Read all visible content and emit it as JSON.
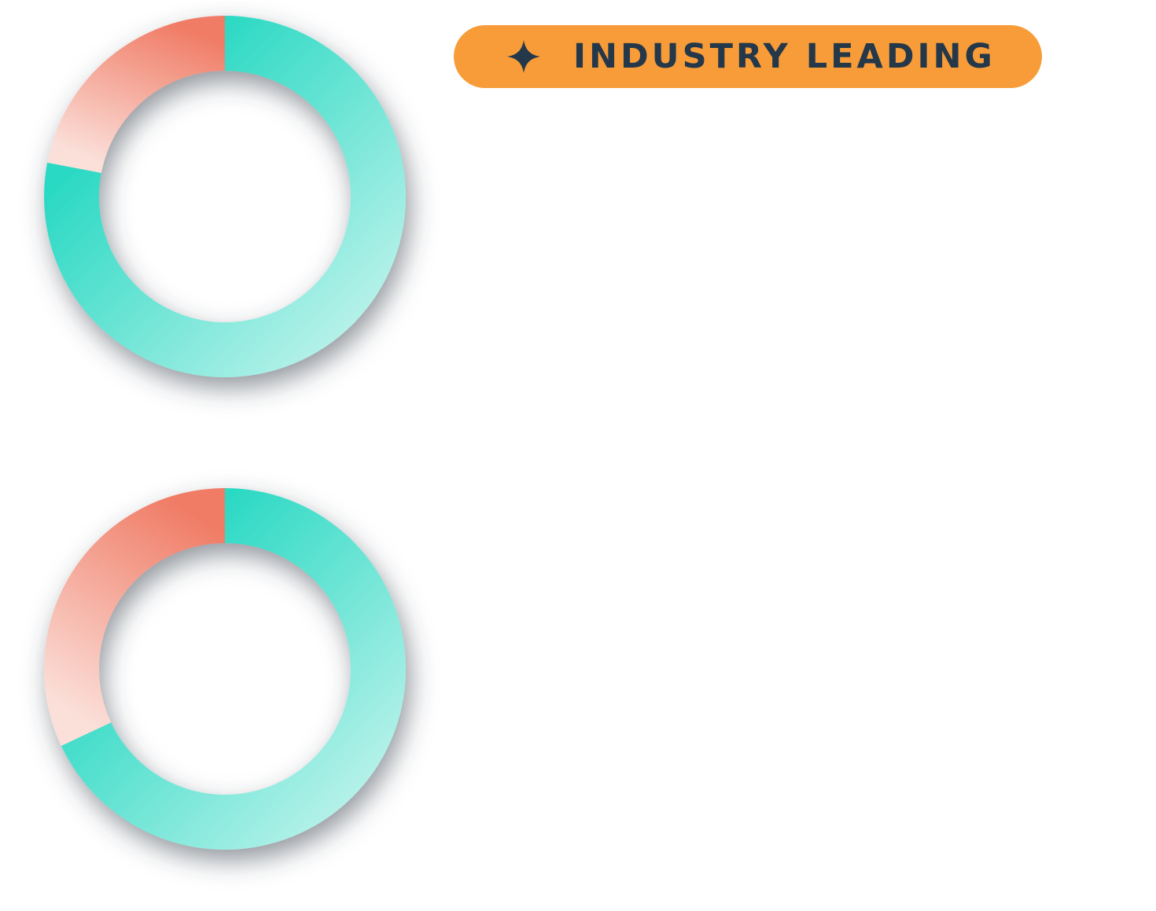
{
  "badge": {
    "label": "INDUSTRY LEADING",
    "icon": "sparkle-icon",
    "background": "#f79c38",
    "text_color": "#24384a"
  },
  "chart_data": [
    {
      "type": "pie",
      "donut": true,
      "values": [
        78,
        22
      ],
      "colors": [
        "#2ad9c3",
        "#f07c66"
      ]
    },
    {
      "type": "pie",
      "donut": true,
      "values": [
        68,
        32
      ],
      "colors": [
        "#2ad9c3",
        "#f07c66"
      ]
    }
  ]
}
